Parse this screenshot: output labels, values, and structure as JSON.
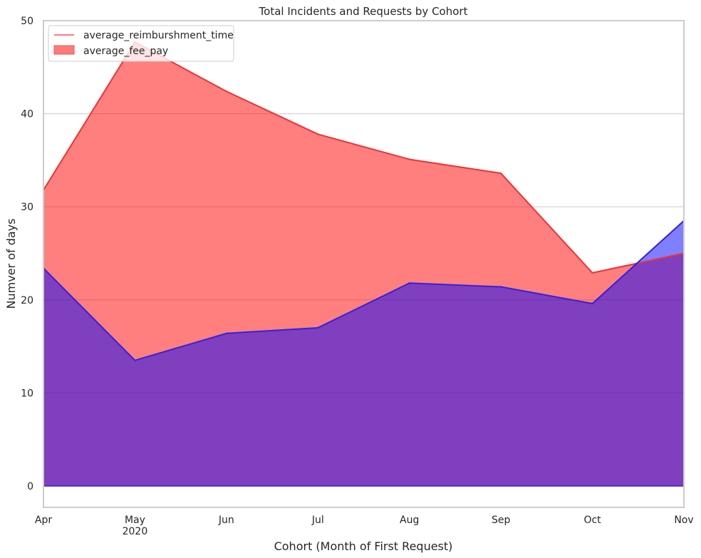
{
  "chart_data": {
    "type": "area",
    "title": "Total Incidents and Requests by Cohort",
    "xlabel": "Cohort (Month of First Request)",
    "ylabel": "Numver of days",
    "categories": [
      "Apr",
      "May",
      "Jun",
      "Jul",
      "Aug",
      "Sep",
      "Oct",
      "Nov"
    ],
    "year_label": "2020",
    "year_under_category": "May",
    "ylim": [
      -2.3,
      50
    ],
    "yticks": [
      0,
      10,
      20,
      30,
      40,
      50
    ],
    "grid": "horizontal",
    "legend_position": "top-left",
    "series": [
      {
        "name": "average_reimburshment_time",
        "legend_kind": "line",
        "values": [
          31.8,
          47.7,
          42.4,
          37.8,
          35.1,
          33.6,
          22.9,
          25.0
        ],
        "fill_color": "#ff0000",
        "line_color": "#ee3333"
      },
      {
        "name": "average_fee_pay",
        "legend_kind": "patch",
        "values": [
          23.4,
          13.5,
          16.4,
          17.0,
          21.8,
          21.4,
          19.6,
          28.5
        ],
        "fill_color": "#0000ff",
        "line_color": "#3322dd"
      }
    ],
    "colors": {
      "red_fill": "#ff7b7b",
      "red_line": "#ee3333",
      "purple_overlap": "#803fbf",
      "blue_line": "#3322dd",
      "grid": "#cccccc",
      "frame": "#cccccc"
    }
  }
}
